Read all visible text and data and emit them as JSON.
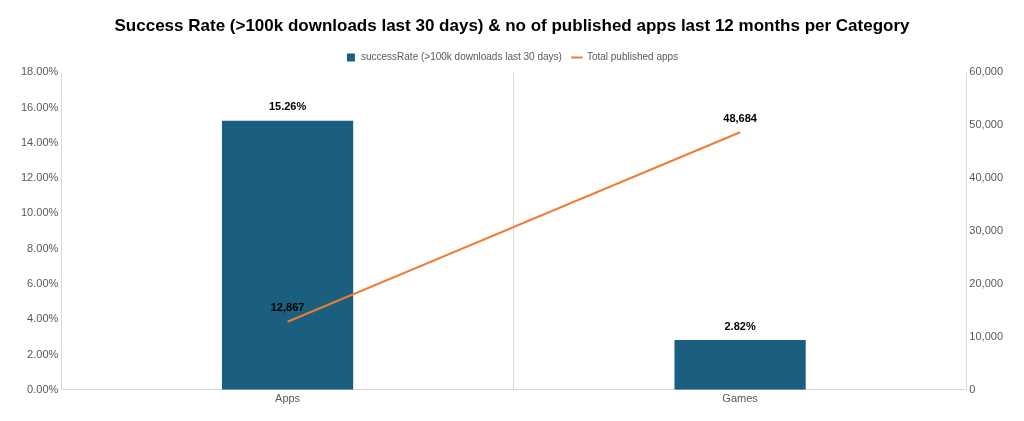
{
  "chart_data": {
    "type": "bar",
    "title": "Success Rate (>100k downloads last 30 days) & no of published apps last 12 months per Category",
    "categories": [
      "Apps",
      "Games"
    ],
    "series": [
      {
        "name": "successRate (>100k downloads last 30 days)",
        "color": "#1a5e80",
        "values": [
          15.26,
          2.82
        ],
        "value_labels": [
          "15.26%",
          "2.82%"
        ]
      },
      {
        "name": "Total published apps",
        "type": "line",
        "axis": "y2",
        "color": "#ed7d31",
        "values": [
          12867,
          48684
        ],
        "value_labels": [
          "12,867",
          "48,684"
        ]
      }
    ],
    "ylim": [
      0,
      18
    ],
    "yticks": [
      {
        "value": 0,
        "label": "0.00%"
      },
      {
        "value": 2,
        "label": "2.00%"
      },
      {
        "value": 4,
        "label": "4.00%"
      },
      {
        "value": 6,
        "label": "6.00%"
      },
      {
        "value": 8,
        "label": "8.00%"
      },
      {
        "value": 10,
        "label": "10.00%"
      },
      {
        "value": 12,
        "label": "12.00%"
      },
      {
        "value": 14,
        "label": "14.00%"
      },
      {
        "value": 16,
        "label": "16.00%"
      },
      {
        "value": 18,
        "label": "18.00%"
      }
    ],
    "y2lim": [
      0,
      60000
    ],
    "y2ticks": [
      0,
      {
        "value": 10000,
        "label": "10,000"
      },
      {
        "value": 20000,
        "label": "20,000"
      },
      {
        "value": 30000,
        "label": "30,000"
      },
      {
        "value": 40000,
        "label": "40,000"
      },
      {
        "value": 50000,
        "label": "50,000"
      },
      {
        "value": 60000,
        "label": "60,000"
      }
    ],
    "grid": "x",
    "legend": "top",
    "marker": "none",
    "line_style": "solid"
  }
}
